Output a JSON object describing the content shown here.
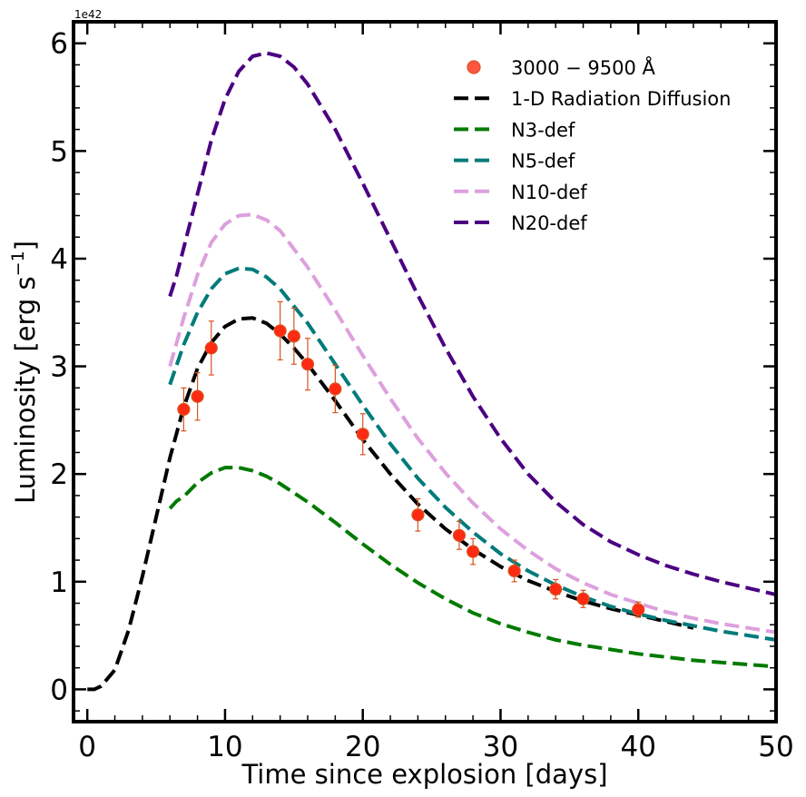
{
  "chart_data": {
    "type": "line",
    "xlabel": "Time since explosion [days]",
    "ylabel": "Luminosity [erg s",
    "ylabel_sup": "−1",
    "ylabel_end": "]",
    "y_offset_label": "1e42",
    "xlim": [
      -1,
      50
    ],
    "ylim": [
      -0.3,
      6.2
    ],
    "x_ticks": [
      0,
      10,
      20,
      30,
      40,
      50
    ],
    "y_ticks": [
      0,
      1,
      2,
      3,
      4,
      5,
      6
    ],
    "legend_position": "top-right",
    "grid": false,
    "observations": {
      "name": "3000 − 9500 Å",
      "color": "#ff2a12",
      "edge_color": "#d8541f",
      "points": [
        {
          "x": 7,
          "y": 2.6,
          "err": 0.2
        },
        {
          "x": 8,
          "y": 2.72,
          "err": 0.22
        },
        {
          "x": 9,
          "y": 3.17,
          "err": 0.25
        },
        {
          "x": 14,
          "y": 3.33,
          "err": 0.27
        },
        {
          "x": 15,
          "y": 3.28,
          "err": 0.26
        },
        {
          "x": 16,
          "y": 3.02,
          "err": 0.24
        },
        {
          "x": 18,
          "y": 2.79,
          "err": 0.22
        },
        {
          "x": 20,
          "y": 2.37,
          "err": 0.19
        },
        {
          "x": 24,
          "y": 1.62,
          "err": 0.15
        },
        {
          "x": 27,
          "y": 1.43,
          "err": 0.13
        },
        {
          "x": 28,
          "y": 1.28,
          "err": 0.12
        },
        {
          "x": 31,
          "y": 1.1,
          "err": 0.1
        },
        {
          "x": 34,
          "y": 0.93,
          "err": 0.09
        },
        {
          "x": 36,
          "y": 0.84,
          "err": 0.08
        },
        {
          "x": 40,
          "y": 0.74,
          "err": 0.07
        }
      ]
    },
    "series": [
      {
        "name": "1-D Radiation Diffusion",
        "color": "#000000",
        "x": [
          0,
          0.5,
          1,
          2,
          3,
          4,
          5,
          6,
          7,
          8,
          9,
          10,
          11,
          12,
          13,
          14,
          15,
          16,
          18,
          20,
          22,
          24,
          26,
          28,
          30,
          32,
          34,
          36,
          38,
          40,
          42,
          44
        ],
        "y": [
          0,
          0.0,
          0.03,
          0.18,
          0.55,
          1.05,
          1.6,
          2.15,
          2.62,
          2.98,
          3.22,
          3.37,
          3.44,
          3.45,
          3.4,
          3.3,
          3.17,
          3.02,
          2.68,
          2.32,
          2.0,
          1.72,
          1.49,
          1.3,
          1.14,
          1.01,
          0.91,
          0.82,
          0.75,
          0.69,
          0.63,
          0.57
        ]
      },
      {
        "name": "N3-def",
        "color": "#007a00",
        "x": [
          6,
          6.5,
          7,
          8,
          9,
          10,
          11,
          12,
          13,
          14,
          16,
          18,
          20,
          22,
          24,
          26,
          28,
          30,
          32,
          34,
          36,
          38,
          40,
          42,
          44,
          46,
          48,
          50
        ],
        "y": [
          1.68,
          1.75,
          1.79,
          1.92,
          2.01,
          2.06,
          2.06,
          2.03,
          1.98,
          1.91,
          1.74,
          1.55,
          1.35,
          1.16,
          0.99,
          0.84,
          0.71,
          0.61,
          0.53,
          0.46,
          0.41,
          0.37,
          0.33,
          0.3,
          0.27,
          0.25,
          0.23,
          0.21
        ]
      },
      {
        "name": "N5-def",
        "color": "#007b7b",
        "x": [
          6,
          7,
          8,
          9,
          10,
          11,
          12,
          13,
          14,
          16,
          18,
          20,
          22,
          24,
          26,
          28,
          30,
          32,
          34,
          36,
          38,
          40,
          42,
          44,
          46,
          48,
          50
        ],
        "y": [
          2.83,
          3.2,
          3.5,
          3.72,
          3.86,
          3.91,
          3.9,
          3.83,
          3.72,
          3.4,
          3.02,
          2.64,
          2.28,
          1.96,
          1.69,
          1.46,
          1.26,
          1.1,
          0.97,
          0.86,
          0.77,
          0.7,
          0.64,
          0.59,
          0.54,
          0.5,
          0.46
        ]
      },
      {
        "name": "N10-def",
        "color": "#dda0dd",
        "x": [
          6,
          7,
          8,
          9,
          10,
          11,
          12,
          13,
          14,
          16,
          18,
          20,
          22,
          24,
          26,
          28,
          30,
          32,
          34,
          36,
          38,
          40,
          42,
          44,
          46,
          48,
          50
        ],
        "y": [
          3.0,
          3.45,
          3.85,
          4.15,
          4.32,
          4.4,
          4.41,
          4.36,
          4.26,
          3.92,
          3.52,
          3.1,
          2.7,
          2.33,
          2.01,
          1.73,
          1.49,
          1.29,
          1.12,
          0.99,
          0.88,
          0.8,
          0.72,
          0.66,
          0.61,
          0.57,
          0.53
        ]
      },
      {
        "name": "N20-def",
        "color": "#4b0082",
        "x": [
          6,
          6.5,
          7,
          8,
          9,
          10,
          11,
          12,
          13,
          14,
          15,
          16,
          18,
          20,
          22,
          24,
          26,
          28,
          30,
          32,
          34,
          36,
          38,
          40,
          42,
          44,
          46,
          48,
          50
        ],
        "y": [
          3.65,
          3.85,
          4.1,
          4.6,
          5.1,
          5.48,
          5.74,
          5.88,
          5.91,
          5.88,
          5.78,
          5.62,
          5.2,
          4.7,
          4.18,
          3.66,
          3.17,
          2.72,
          2.33,
          2.0,
          1.74,
          1.53,
          1.37,
          1.25,
          1.15,
          1.07,
          1.0,
          0.94,
          0.88
        ]
      }
    ]
  }
}
